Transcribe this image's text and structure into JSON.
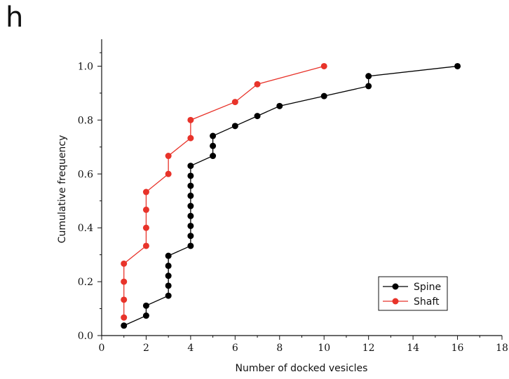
{
  "panel_label": "h",
  "chart_data": {
    "type": "line",
    "title": "",
    "xlabel": "Number of docked vesicles",
    "ylabel": "Cumulative frequency",
    "xlim": [
      0,
      18
    ],
    "ylim": [
      0.0,
      1.1
    ],
    "x_ticks": [
      0,
      2,
      4,
      6,
      8,
      10,
      12,
      14,
      16,
      18
    ],
    "x_tick_labels": [
      "0",
      "2",
      "4",
      "6",
      "8",
      "10",
      "12",
      "14",
      "16",
      "18"
    ],
    "y_ticks": [
      0.0,
      0.2,
      0.4,
      0.6,
      0.8,
      1.0
    ],
    "y_tick_labels": [
      "0.0",
      "0.2",
      "0.4",
      "0.6",
      "0.8",
      "1.0"
    ],
    "grid": false,
    "legend_position": "bottom-right",
    "series": [
      {
        "name": "Spine",
        "color": "#000000",
        "x": [
          1,
          2,
          2,
          3,
          3,
          3,
          3,
          3,
          4,
          4,
          4,
          4,
          4,
          4,
          4,
          4,
          4,
          5,
          5,
          5,
          6,
          7,
          8,
          10,
          12,
          12,
          16
        ],
        "y": [
          0.037,
          0.074,
          0.111,
          0.148,
          0.185,
          0.222,
          0.259,
          0.296,
          0.333,
          0.37,
          0.407,
          0.444,
          0.481,
          0.519,
          0.556,
          0.593,
          0.63,
          0.667,
          0.704,
          0.741,
          0.778,
          0.815,
          0.852,
          0.889,
          0.926,
          0.963,
          1.0
        ]
      },
      {
        "name": "Shaft",
        "color": "#e8332a",
        "x": [
          1,
          1,
          1,
          1,
          2,
          2,
          2,
          2,
          3,
          3,
          4,
          4,
          6,
          7,
          10
        ],
        "y": [
          0.067,
          0.133,
          0.2,
          0.267,
          0.333,
          0.4,
          0.467,
          0.533,
          0.6,
          0.667,
          0.733,
          0.8,
          0.867,
          0.933,
          1.0
        ]
      }
    ]
  }
}
